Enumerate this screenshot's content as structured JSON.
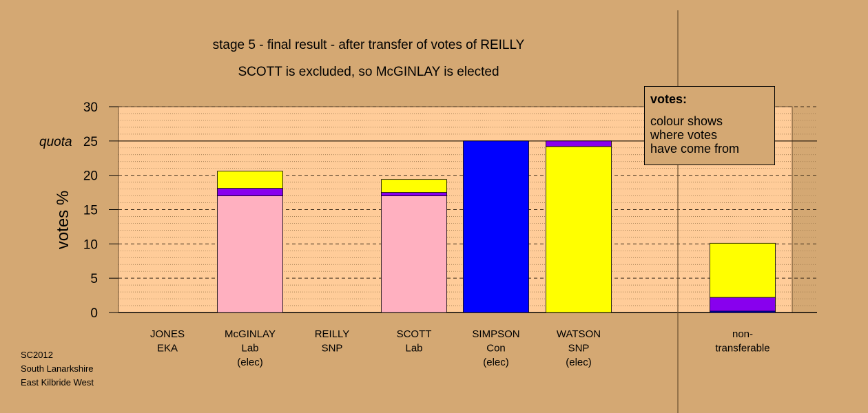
{
  "chart_data": {
    "type": "bar",
    "stacked": true,
    "title": "stage 5 - final result - after transfer of votes of REILLY",
    "subtitle": "SCOTT is excluded, so McGINLAY is elected",
    "ylabel": "votes %",
    "ylim": [
      0,
      30
    ],
    "yticks": [
      0,
      5,
      10,
      15,
      20,
      25,
      30
    ],
    "quota": {
      "label": "quota",
      "value": 25
    },
    "grid": true,
    "categories": [
      {
        "lines": [
          "JONES",
          "EKA"
        ]
      },
      {
        "lines": [
          "McGINLAY",
          "Lab",
          "(elec)"
        ]
      },
      {
        "lines": [
          "REILLY",
          "SNP"
        ]
      },
      {
        "lines": [
          "SCOTT",
          "Lab"
        ]
      },
      {
        "lines": [
          "SIMPSON",
          "Con",
          "(elec)"
        ]
      },
      {
        "lines": [
          "WATSON",
          "SNP",
          "(elec)"
        ]
      },
      {
        "lines": [
          "non-",
          "transferable"
        ]
      }
    ],
    "bars": [
      [],
      [
        {
          "value": 17.0,
          "color": "#FFB0C0"
        },
        {
          "value": 1.1,
          "color": "#8800EE"
        },
        {
          "value": 2.5,
          "color": "#FFFF00"
        }
      ],
      [],
      [
        {
          "value": 17.0,
          "color": "#FFB0C0"
        },
        {
          "value": 0.5,
          "color": "#8800EE"
        },
        {
          "value": 1.9,
          "color": "#FFFF00"
        }
      ],
      [
        {
          "value": 25.0,
          "color": "#0000FF"
        }
      ],
      [
        {
          "value": 24.2,
          "color": "#FFFF00"
        },
        {
          "value": 0.8,
          "color": "#8800EE"
        }
      ],
      [
        {
          "value": 0.2,
          "color": "#0000FF"
        },
        {
          "value": 2.0,
          "color": "#8800EE"
        },
        {
          "value": 7.9,
          "color": "#FFFF00"
        }
      ]
    ]
  },
  "legend": {
    "heading": "votes:",
    "lines": [
      "colour shows",
      "where votes",
      "have come from"
    ]
  },
  "source": [
    "SC2012",
    "South Lanarkshire",
    "East Kilbride West"
  ],
  "colors": {
    "background": "#D4A873",
    "plot_area": "#FFCC99",
    "grid": "#8A6A40"
  }
}
